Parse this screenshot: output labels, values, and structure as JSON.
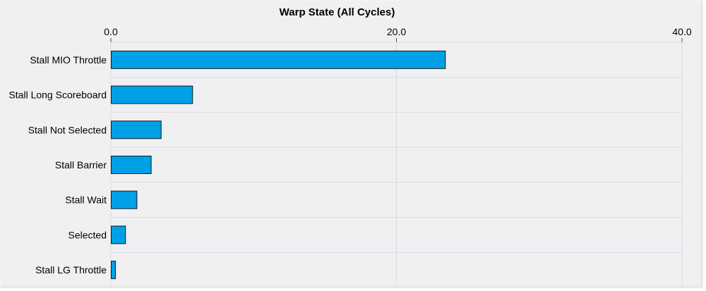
{
  "colors": {
    "background": "#f0eff1",
    "bar_fill": "#00a0e6",
    "bar_stroke": "#1a1a1a",
    "grid": "#dddcdf"
  },
  "chart_data": {
    "type": "bar",
    "orientation": "horizontal",
    "title": "Warp State (All Cycles)",
    "xlabel": "",
    "ylabel": "",
    "xlim": [
      0,
      40
    ],
    "x_ticks": [
      "0.0",
      "20.0",
      "40.0"
    ],
    "x_axis_position": "top",
    "grid": true,
    "categories": [
      "Stall MIO Throttle",
      "Stall Long Scoreboard",
      "Stall Not Selected",
      "Stall Barrier",
      "Stall Wait",
      "Selected",
      "Stall LG Throttle"
    ],
    "values": [
      23.4,
      5.7,
      3.5,
      2.8,
      1.8,
      1.0,
      0.3
    ]
  }
}
